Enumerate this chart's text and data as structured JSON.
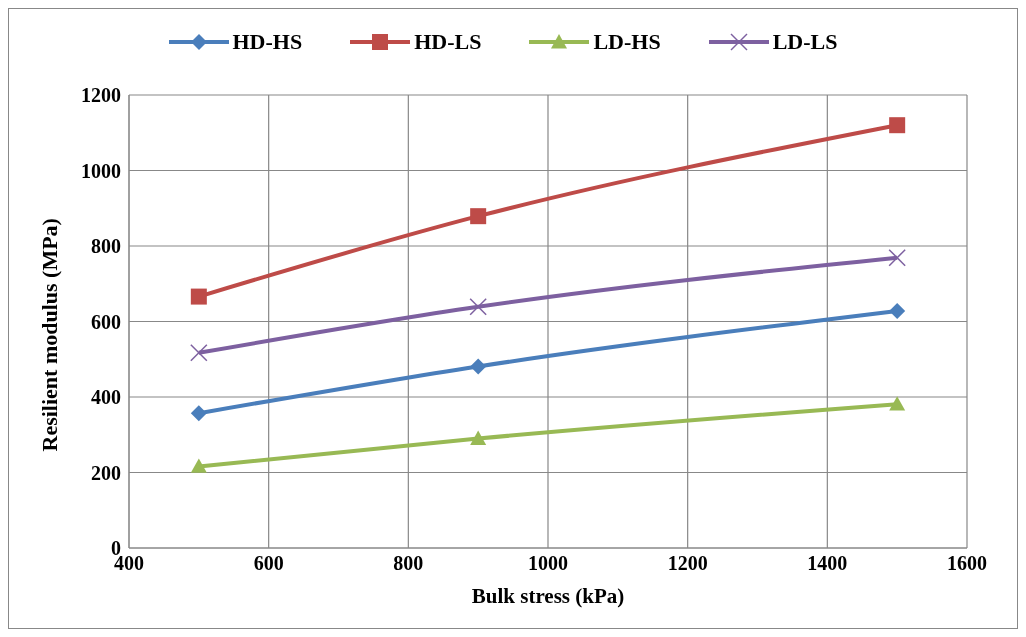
{
  "chart_data": {
    "type": "line",
    "xlabel": "Bulk stress  (kPa)",
    "ylabel": "Resilient modulus (MPa)",
    "x": [
      500,
      900,
      1500
    ],
    "series": [
      {
        "name": "HD-HS",
        "color": "#4a7ebb",
        "marker": "diamond",
        "values": [
          357,
          481,
          628
        ]
      },
      {
        "name": "HD-LS",
        "color": "#be4b48",
        "marker": "square",
        "values": [
          666,
          879,
          1120
        ]
      },
      {
        "name": "LD-HS",
        "color": "#98b954",
        "marker": "triangle",
        "values": [
          216,
          290,
          381
        ]
      },
      {
        "name": "LD-LS",
        "color": "#7d60a0",
        "marker": "cross",
        "values": [
          517,
          639,
          769
        ]
      }
    ],
    "xlim": [
      400,
      1600
    ],
    "xticks": [
      400,
      600,
      800,
      1000,
      1200,
      1400,
      1600
    ],
    "ylim": [
      0,
      1200
    ],
    "yticks": [
      0,
      200,
      400,
      600,
      800,
      1000,
      1200
    ],
    "grid": true,
    "legend": "top",
    "line_style": "solid"
  }
}
